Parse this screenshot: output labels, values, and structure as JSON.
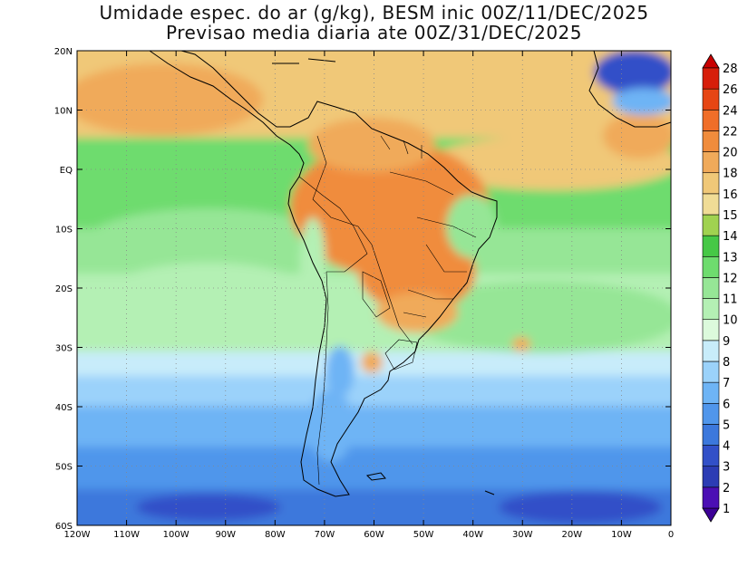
{
  "title": {
    "line1": "Umidade espec. do ar (g/kg), BESM inic 00Z/11/DEC/2025",
    "line2": "Previsao media diaria ate 00Z/31/DEC/2025"
  },
  "map": {
    "lon_range": [
      -120,
      0
    ],
    "lat_range": [
      -60,
      20
    ],
    "lon_ticks": [
      {
        "v": -120,
        "label": "120W"
      },
      {
        "v": -110,
        "label": "110W"
      },
      {
        "v": -100,
        "label": "100W"
      },
      {
        "v": -90,
        "label": "90W"
      },
      {
        "v": -80,
        "label": "80W"
      },
      {
        "v": -70,
        "label": "70W"
      },
      {
        "v": -60,
        "label": "60W"
      },
      {
        "v": -50,
        "label": "50W"
      },
      {
        "v": -40,
        "label": "40W"
      },
      {
        "v": -30,
        "label": "30W"
      },
      {
        "v": -20,
        "label": "20W"
      },
      {
        "v": -10,
        "label": "10W"
      },
      {
        "v": 0,
        "label": "0"
      }
    ],
    "lat_ticks": [
      {
        "v": 20,
        "label": "20N"
      },
      {
        "v": 10,
        "label": "10N"
      },
      {
        "v": 0,
        "label": "EQ"
      },
      {
        "v": -10,
        "label": "10S"
      },
      {
        "v": -20,
        "label": "20S"
      },
      {
        "v": -30,
        "label": "30S"
      },
      {
        "v": -40,
        "label": "40S"
      },
      {
        "v": -50,
        "label": "50S"
      },
      {
        "v": -60,
        "label": "60S"
      }
    ],
    "gridlines": true
  },
  "colorbar": {
    "levels": [
      "1",
      "2",
      "3",
      "4",
      "5",
      "6",
      "7",
      "8",
      "9",
      "10",
      "11",
      "12",
      "13",
      "14",
      "15",
      "16",
      "18",
      "20",
      "22",
      "24",
      "26",
      "28"
    ],
    "colors": [
      "#3c0096",
      "#4b0fb4",
      "#2c3cb4",
      "#3250c8",
      "#3c78dc",
      "#5096eb",
      "#6eb4f5",
      "#9bd2fa",
      "#c8ecfa",
      "#dcfadc",
      "#b4f0b4",
      "#96e696",
      "#6edc6e",
      "#46c846",
      "#a0d250",
      "#f0dc96",
      "#f0c878",
      "#f0aa5a",
      "#f08c3c",
      "#f06e28",
      "#e64614",
      "#d71e0a",
      "#c80000"
    ]
  }
}
